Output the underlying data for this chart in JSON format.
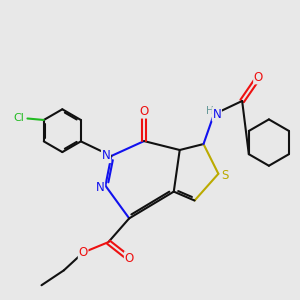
{
  "bg": "#e8e8e8",
  "lw": 1.5,
  "C": "#111111",
  "N": "#1111ee",
  "O": "#ee1111",
  "S": "#bbaa00",
  "Cl": "#22bb22",
  "H": "#669999",
  "fs": 8.0,
  "figsize": [
    3.0,
    3.0
  ],
  "dpi": 100
}
